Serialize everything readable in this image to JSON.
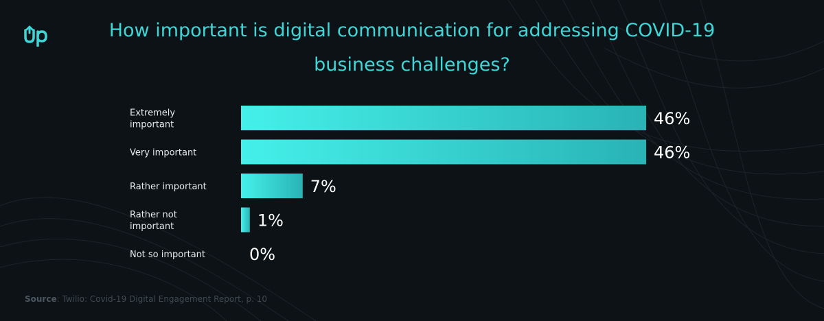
{
  "brand": {
    "logo_text": "Up",
    "logo_color": "#3ed6d6"
  },
  "title": "How important is digital communication for addressing COVID-19 business challenges?",
  "source": {
    "key": "Source",
    "text": ": Twilio: Covid-19 Digital Engagement Report, p. 10"
  },
  "colors": {
    "background": "#0d1216",
    "bar_start": "#45f0ea",
    "bar_end": "#29b3b5",
    "title": "#3ed6d6"
  },
  "chart_data": {
    "type": "bar",
    "orientation": "horizontal",
    "title": "How important is digital communication for addressing COVID-19 business challenges?",
    "xlabel": "",
    "ylabel": "",
    "xlim": [
      0,
      46
    ],
    "grid": false,
    "categories": [
      [
        "Extremely",
        "important"
      ],
      [
        "Very important"
      ],
      [
        "Rather important"
      ],
      [
        "Rather not",
        "important"
      ],
      [
        "Not so important"
      ]
    ],
    "values": [
      46,
      46,
      7,
      1,
      0
    ],
    "value_labels": [
      "46%",
      "46%",
      "7%",
      "1%",
      "0%"
    ]
  }
}
